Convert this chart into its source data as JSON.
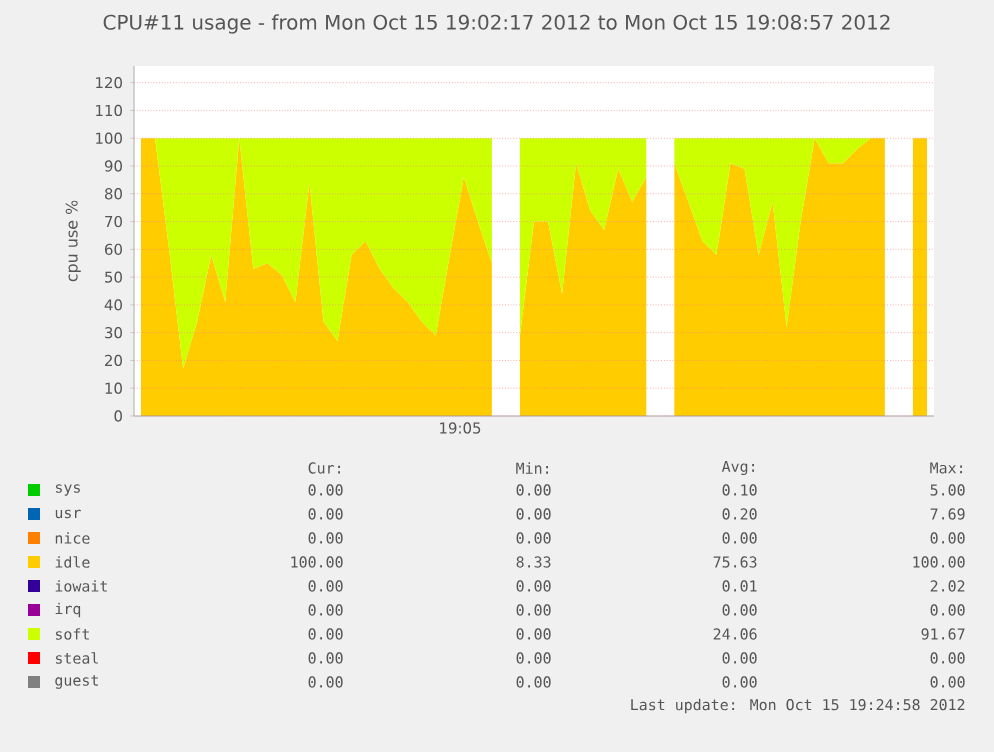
{
  "chart_data": {
    "type": "area",
    "stacked": true,
    "title": "CPU#11 usage - from Mon Oct 15 19:02:17 2012 to Mon Oct 15 19:08:57 2012",
    "ylabel": "cpu use %",
    "categories": [
      null,
      null,
      null,
      null,
      null,
      null,
      null,
      null,
      null,
      null,
      null,
      null,
      null,
      null,
      null,
      null,
      null,
      null,
      null,
      null,
      null,
      null,
      null,
      null,
      null,
      null,
      null,
      null,
      null,
      null,
      null,
      null,
      null,
      null,
      null,
      null,
      null,
      null,
      null,
      null,
      null,
      null,
      null,
      null,
      null,
      null,
      null,
      null,
      null,
      null,
      null,
      null,
      null,
      null,
      null,
      null,
      null
    ],
    "series": [
      {
        "name": "sys",
        "color": "#00cc00",
        "values": [
          null,
          null,
          null,
          null,
          null,
          null,
          null,
          null,
          null,
          null,
          null,
          null,
          null,
          null,
          null,
          null,
          null,
          null,
          null,
          null,
          null,
          null,
          null,
          null,
          null,
          null,
          null,
          null,
          null,
          null,
          null,
          null,
          null,
          null,
          null,
          null,
          null,
          null,
          null,
          null,
          null,
          null,
          null,
          null,
          null,
          null,
          null,
          null,
          null,
          null,
          null,
          null,
          null,
          null,
          null,
          null,
          null
        ]
      },
      {
        "name": "usr",
        "color": "#0066b3",
        "values": [
          null,
          null,
          null,
          null,
          null,
          null,
          null,
          null,
          null,
          null,
          null,
          null,
          null,
          null,
          null,
          null,
          null,
          null,
          null,
          null,
          null,
          null,
          null,
          null,
          null,
          null,
          null,
          null,
          null,
          null,
          null,
          null,
          null,
          null,
          null,
          null,
          null,
          null,
          null,
          null,
          null,
          null,
          null,
          null,
          null,
          null,
          null,
          null,
          null,
          null,
          null,
          null,
          null,
          null,
          null,
          null,
          null
        ]
      },
      {
        "name": "nice",
        "color": "#ff8000",
        "values": [
          null,
          null,
          null,
          null,
          null,
          null,
          null,
          null,
          null,
          null,
          null,
          null,
          null,
          null,
          null,
          null,
          null,
          null,
          null,
          null,
          null,
          null,
          null,
          null,
          null,
          null,
          null,
          null,
          null,
          null,
          null,
          null,
          null,
          null,
          null,
          null,
          null,
          null,
          null,
          null,
          null,
          null,
          null,
          null,
          null,
          null,
          null,
          null,
          null,
          null,
          null,
          null,
          null,
          null,
          null,
          null,
          null
        ]
      },
      {
        "name": "idle",
        "color": "#ffcc00",
        "values": [
          100,
          100,
          60,
          17,
          34,
          58,
          41,
          100,
          53,
          55,
          51,
          41,
          84,
          34,
          27,
          58,
          63,
          53,
          46,
          41,
          34,
          29,
          58,
          86,
          70,
          55,
          null,
          29,
          70,
          70,
          44,
          91,
          74,
          67,
          89,
          77,
          86,
          null,
          91,
          77,
          63,
          58,
          91,
          89,
          58,
          77,
          32,
          70,
          100,
          91,
          91,
          96,
          100,
          100,
          null,
          100,
          100
        ]
      },
      {
        "name": "iowait",
        "color": "#330099",
        "values": [
          null,
          null,
          null,
          null,
          null,
          null,
          null,
          null,
          null,
          null,
          null,
          null,
          null,
          null,
          null,
          null,
          null,
          null,
          null,
          null,
          null,
          null,
          null,
          null,
          null,
          null,
          null,
          null,
          null,
          null,
          null,
          null,
          null,
          null,
          null,
          null,
          null,
          null,
          null,
          null,
          null,
          null,
          null,
          null,
          null,
          null,
          null,
          null,
          null,
          null,
          null,
          null,
          null,
          null,
          null,
          null,
          null
        ]
      },
      {
        "name": "irq",
        "color": "#990099",
        "values": [
          null,
          null,
          null,
          null,
          null,
          null,
          null,
          null,
          null,
          null,
          null,
          null,
          null,
          null,
          null,
          null,
          null,
          null,
          null,
          null,
          null,
          null,
          null,
          null,
          null,
          null,
          null,
          null,
          null,
          null,
          null,
          null,
          null,
          null,
          null,
          null,
          null,
          null,
          null,
          null,
          null,
          null,
          null,
          null,
          null,
          null,
          null,
          null,
          null,
          null,
          null,
          null,
          null,
          null,
          null,
          null,
          null
        ]
      },
      {
        "name": "soft",
        "color": "#ccff00",
        "values": [
          0,
          0,
          40,
          83,
          66,
          42,
          59,
          0,
          47,
          45,
          49,
          59,
          16,
          66,
          73,
          42,
          37,
          47,
          54,
          59,
          66,
          71,
          42,
          14,
          30,
          45,
          null,
          71,
          30,
          30,
          56,
          9,
          26,
          33,
          11,
          23,
          14,
          null,
          9,
          23,
          37,
          42,
          9,
          11,
          42,
          23,
          68,
          30,
          0,
          9,
          9,
          4,
          0,
          0,
          null,
          null,
          null
        ]
      },
      {
        "name": "steal",
        "color": "#ff0000",
        "values": [
          null,
          null,
          null,
          null,
          null,
          null,
          null,
          null,
          null,
          null,
          null,
          null,
          null,
          null,
          null,
          null,
          null,
          null,
          null,
          null,
          null,
          null,
          null,
          null,
          null,
          null,
          null,
          null,
          null,
          null,
          null,
          null,
          null,
          null,
          null,
          null,
          null,
          null,
          null,
          null,
          null,
          null,
          null,
          null,
          null,
          null,
          null,
          null,
          null,
          null,
          null,
          null,
          null,
          null,
          null,
          null,
          null
        ]
      },
      {
        "name": "guest",
        "color": "#808080",
        "values": [
          null,
          null,
          null,
          null,
          null,
          null,
          null,
          null,
          null,
          null,
          null,
          null,
          null,
          null,
          null,
          null,
          null,
          null,
          null,
          null,
          null,
          null,
          null,
          null,
          null,
          null,
          null,
          null,
          null,
          null,
          null,
          null,
          null,
          null,
          null,
          null,
          null,
          null,
          null,
          null,
          null,
          null,
          null,
          null,
          null,
          null,
          null,
          null,
          null,
          null,
          null,
          null,
          null,
          null,
          null,
          null,
          null
        ]
      }
    ],
    "ylim": [
      0,
      126
    ],
    "yticks": [
      0,
      10,
      20,
      30,
      40,
      50,
      60,
      70,
      80,
      90,
      100,
      110,
      120
    ],
    "grid": true,
    "legend": "bottom",
    "annotations": [
      "Cur:",
      "Min:",
      "Avg:",
      "Max:",
      "0.00",
      "0.00",
      "0.10",
      "5.00",
      "0.00",
      "0.00",
      "0.20",
      "7.69",
      "0.00",
      "0.00",
      "0.00",
      "0.00",
      "100.00",
      "8.33",
      "75.63",
      "100.00",
      "0.00",
      "0.00",
      "0.01",
      "2.02",
      "0.00",
      "0.00",
      "0.00",
      "0.00",
      "0.00",
      "0.00",
      "24.06",
      "91.67",
      "0.00",
      "0.00",
      "0.00",
      "0.00",
      "0.00",
      "0.00",
      "0.00",
      "0.00",
      "Last update:  Mon Oct 15 19:24:58 2012",
      "19:05"
    ]
  }
}
